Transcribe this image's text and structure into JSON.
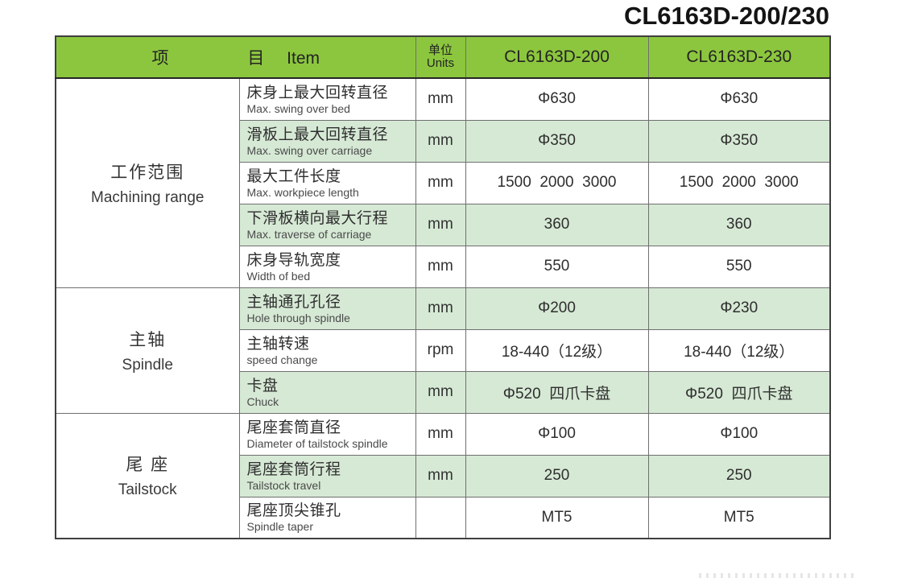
{
  "page": {
    "title": "CL6163D-200/230"
  },
  "colors": {
    "header_green": "#8cc63e",
    "row_green": "#d6e9d5",
    "border_gray": "#6f6f6f",
    "text_dark": "#2e2e2e"
  },
  "table": {
    "header": {
      "item_cn1": "项",
      "item_cn2": "目",
      "item_en": "Item",
      "units_cn": "单位",
      "units_en": "Units",
      "model_200": "CL6163D-200",
      "model_230": "CL6163D-230"
    },
    "groups": [
      {
        "label_cn": "工作范围",
        "label_en": "Machining range",
        "rows": [
          {
            "cn": "床身上最大回转直径",
            "en": "Max. swing over bed",
            "unit": "mm",
            "v200": "Φ630",
            "v230": "Φ630",
            "shade": false
          },
          {
            "cn": "滑板上最大回转直径",
            "en": "Max. swing over carriage",
            "unit": "mm",
            "v200": "Φ350",
            "v230": "Φ350",
            "shade": true
          },
          {
            "cn": "最大工件长度",
            "en": "Max. workpiece length",
            "unit": "mm",
            "v200": "1500  2000  3000",
            "v230": "1500  2000  3000",
            "shade": false
          },
          {
            "cn": "下滑板横向最大行程",
            "en": "Max. traverse of carriage",
            "unit": "mm",
            "v200": "360",
            "v230": "360",
            "shade": true
          },
          {
            "cn": "床身导轨宽度",
            "en": "Width of bed",
            "unit": "mm",
            "v200": "550",
            "v230": "550",
            "shade": false
          }
        ]
      },
      {
        "label_cn": "主轴",
        "label_en": "Spindle",
        "rows": [
          {
            "cn": "主轴通孔孔径",
            "en": "Hole through spindle",
            "unit": "mm",
            "v200": "Φ200",
            "v230": "Φ230",
            "shade": true
          },
          {
            "cn": "主轴转速",
            "en": "speed change",
            "unit": "rpm",
            "v200": "18-440（12级）",
            "v230": "18-440（12级）",
            "shade": false
          },
          {
            "cn": "卡盘",
            "en": "Chuck",
            "unit": "mm",
            "v200": "Φ520  四爪卡盘",
            "v230": "Φ520  四爪卡盘",
            "shade": true
          }
        ]
      },
      {
        "label_cn": "尾 座",
        "label_en": "Tailstock",
        "rows": [
          {
            "cn": "尾座套筒直径",
            "en": "Diameter of tailstock spindle",
            "unit": "mm",
            "v200": "Φ100",
            "v230": "Φ100",
            "shade": false
          },
          {
            "cn": "尾座套筒行程",
            "en": "Tailstock travel",
            "unit": "mm",
            "v200": "250",
            "v230": "250",
            "shade": true
          },
          {
            "cn": "尾座顶尖锥孔",
            "en": "Spindle taper",
            "unit": "",
            "v200": "MT5",
            "v230": "MT5",
            "shade": false
          }
        ]
      }
    ]
  }
}
